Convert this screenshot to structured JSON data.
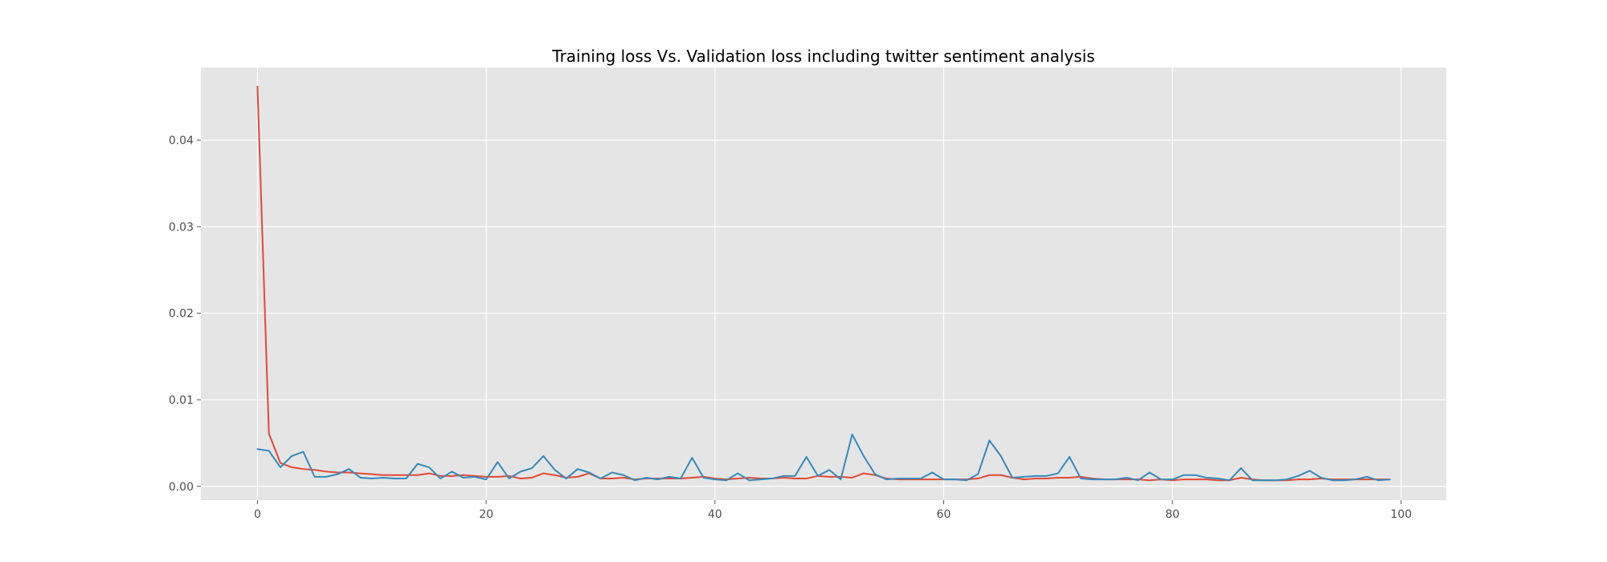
{
  "chart_data": {
    "type": "line",
    "title": "Training loss Vs. Validation loss including twitter sentiment analysis",
    "xlabel": "",
    "ylabel": "",
    "xlim": [
      -4.95,
      103.95
    ],
    "ylim": [
      -0.0016,
      0.0484
    ],
    "xticks": [
      0,
      20,
      40,
      60,
      80,
      100
    ],
    "yticks": [
      0.0,
      0.01,
      0.02,
      0.03,
      0.04
    ],
    "xtick_labels": [
      "0",
      "20",
      "40",
      "60",
      "80",
      "100"
    ],
    "ytick_labels": [
      "0.00",
      "0.01",
      "0.02",
      "0.03",
      "0.04"
    ],
    "grid": true,
    "legend": "none",
    "series": [
      {
        "color": "#E24A33",
        "x": [
          0,
          1,
          2,
          3,
          4,
          5,
          6,
          7,
          8,
          9,
          10,
          11,
          12,
          13,
          14,
          15,
          16,
          17,
          18,
          19,
          20,
          21,
          22,
          23,
          24,
          25,
          26,
          27,
          28,
          29,
          30,
          31,
          32,
          33,
          34,
          35,
          36,
          37,
          38,
          39,
          40,
          41,
          42,
          43,
          44,
          45,
          46,
          47,
          48,
          49,
          50,
          51,
          52,
          53,
          54,
          55,
          56,
          57,
          58,
          59,
          60,
          61,
          62,
          63,
          64,
          65,
          66,
          67,
          68,
          69,
          70,
          71,
          72,
          73,
          74,
          75,
          76,
          77,
          78,
          79,
          80,
          81,
          82,
          83,
          84,
          85,
          86,
          87,
          88,
          89,
          90,
          91,
          92,
          93,
          94,
          95,
          96,
          97,
          98,
          99
        ],
        "values": [
          0.0462,
          0.0061,
          0.0027,
          0.0022,
          0.002,
          0.0019,
          0.0017,
          0.0016,
          0.0016,
          0.0015,
          0.0014,
          0.0013,
          0.0013,
          0.0013,
          0.0013,
          0.0015,
          0.0012,
          0.0012,
          0.0013,
          0.0012,
          0.0011,
          0.0011,
          0.0012,
          0.0009,
          0.001,
          0.0015,
          0.0013,
          0.001,
          0.0011,
          0.0015,
          0.0009,
          0.0009,
          0.001,
          0.0008,
          0.0009,
          0.0009,
          0.0009,
          0.0009,
          0.001,
          0.0011,
          0.0009,
          0.0008,
          0.0009,
          0.001,
          0.0009,
          0.0009,
          0.001,
          0.0009,
          0.0009,
          0.0012,
          0.0011,
          0.0011,
          0.001,
          0.0015,
          0.0013,
          0.0009,
          0.0008,
          0.0008,
          0.0008,
          0.0008,
          0.0008,
          0.0008,
          0.0008,
          0.0009,
          0.0013,
          0.0013,
          0.001,
          0.0008,
          0.0009,
          0.0009,
          0.001,
          0.001,
          0.0011,
          0.0009,
          0.0008,
          0.0008,
          0.0008,
          0.0008,
          0.0007,
          0.0008,
          0.0007,
          0.0008,
          0.0008,
          0.0008,
          0.0007,
          0.0007,
          0.001,
          0.0008,
          0.0007,
          0.0007,
          0.0007,
          0.0008,
          0.0008,
          0.0009,
          0.0008,
          0.0008,
          0.0008,
          0.0008,
          0.0008,
          0.0008
        ]
      },
      {
        "color": "#348ABD",
        "x": [
          0,
          1,
          2,
          3,
          4,
          5,
          6,
          7,
          8,
          9,
          10,
          11,
          12,
          13,
          14,
          15,
          16,
          17,
          18,
          19,
          20,
          21,
          22,
          23,
          24,
          25,
          26,
          27,
          28,
          29,
          30,
          31,
          32,
          33,
          34,
          35,
          36,
          37,
          38,
          39,
          40,
          41,
          42,
          43,
          44,
          45,
          46,
          47,
          48,
          49,
          50,
          51,
          52,
          53,
          54,
          55,
          56,
          57,
          58,
          59,
          60,
          61,
          62,
          63,
          64,
          65,
          66,
          67,
          68,
          69,
          70,
          71,
          72,
          73,
          74,
          75,
          76,
          77,
          78,
          79,
          80,
          81,
          82,
          83,
          84,
          85,
          86,
          87,
          88,
          89,
          90,
          91,
          92,
          93,
          94,
          95,
          96,
          97,
          98,
          99
        ],
        "values": [
          0.0043,
          0.0041,
          0.0022,
          0.0035,
          0.004,
          0.0011,
          0.0011,
          0.0014,
          0.002,
          0.001,
          0.0009,
          0.001,
          0.0009,
          0.0009,
          0.0026,
          0.0022,
          0.0009,
          0.0017,
          0.001,
          0.0011,
          0.0008,
          0.0028,
          0.0009,
          0.0017,
          0.0021,
          0.0035,
          0.0019,
          0.0009,
          0.002,
          0.0016,
          0.0009,
          0.0016,
          0.0013,
          0.0007,
          0.001,
          0.0008,
          0.0011,
          0.0009,
          0.0033,
          0.001,
          0.0008,
          0.0007,
          0.0015,
          0.0007,
          0.0008,
          0.0009,
          0.0012,
          0.0012,
          0.0034,
          0.0012,
          0.0019,
          0.0008,
          0.006,
          0.0035,
          0.0014,
          0.0008,
          0.0009,
          0.0009,
          0.0009,
          0.0016,
          0.0008,
          0.0008,
          0.0007,
          0.0014,
          0.0053,
          0.0035,
          0.001,
          0.0011,
          0.0012,
          0.0012,
          0.0015,
          0.0034,
          0.0009,
          0.0008,
          0.0008,
          0.0008,
          0.001,
          0.0007,
          0.0016,
          0.0008,
          0.0008,
          0.0013,
          0.0013,
          0.001,
          0.0009,
          0.0007,
          0.0021,
          0.0007,
          0.0007,
          0.0007,
          0.0008,
          0.0012,
          0.0018,
          0.001,
          0.0007,
          0.0007,
          0.0008,
          0.0011,
          0.0007,
          0.0008
        ]
      }
    ]
  }
}
